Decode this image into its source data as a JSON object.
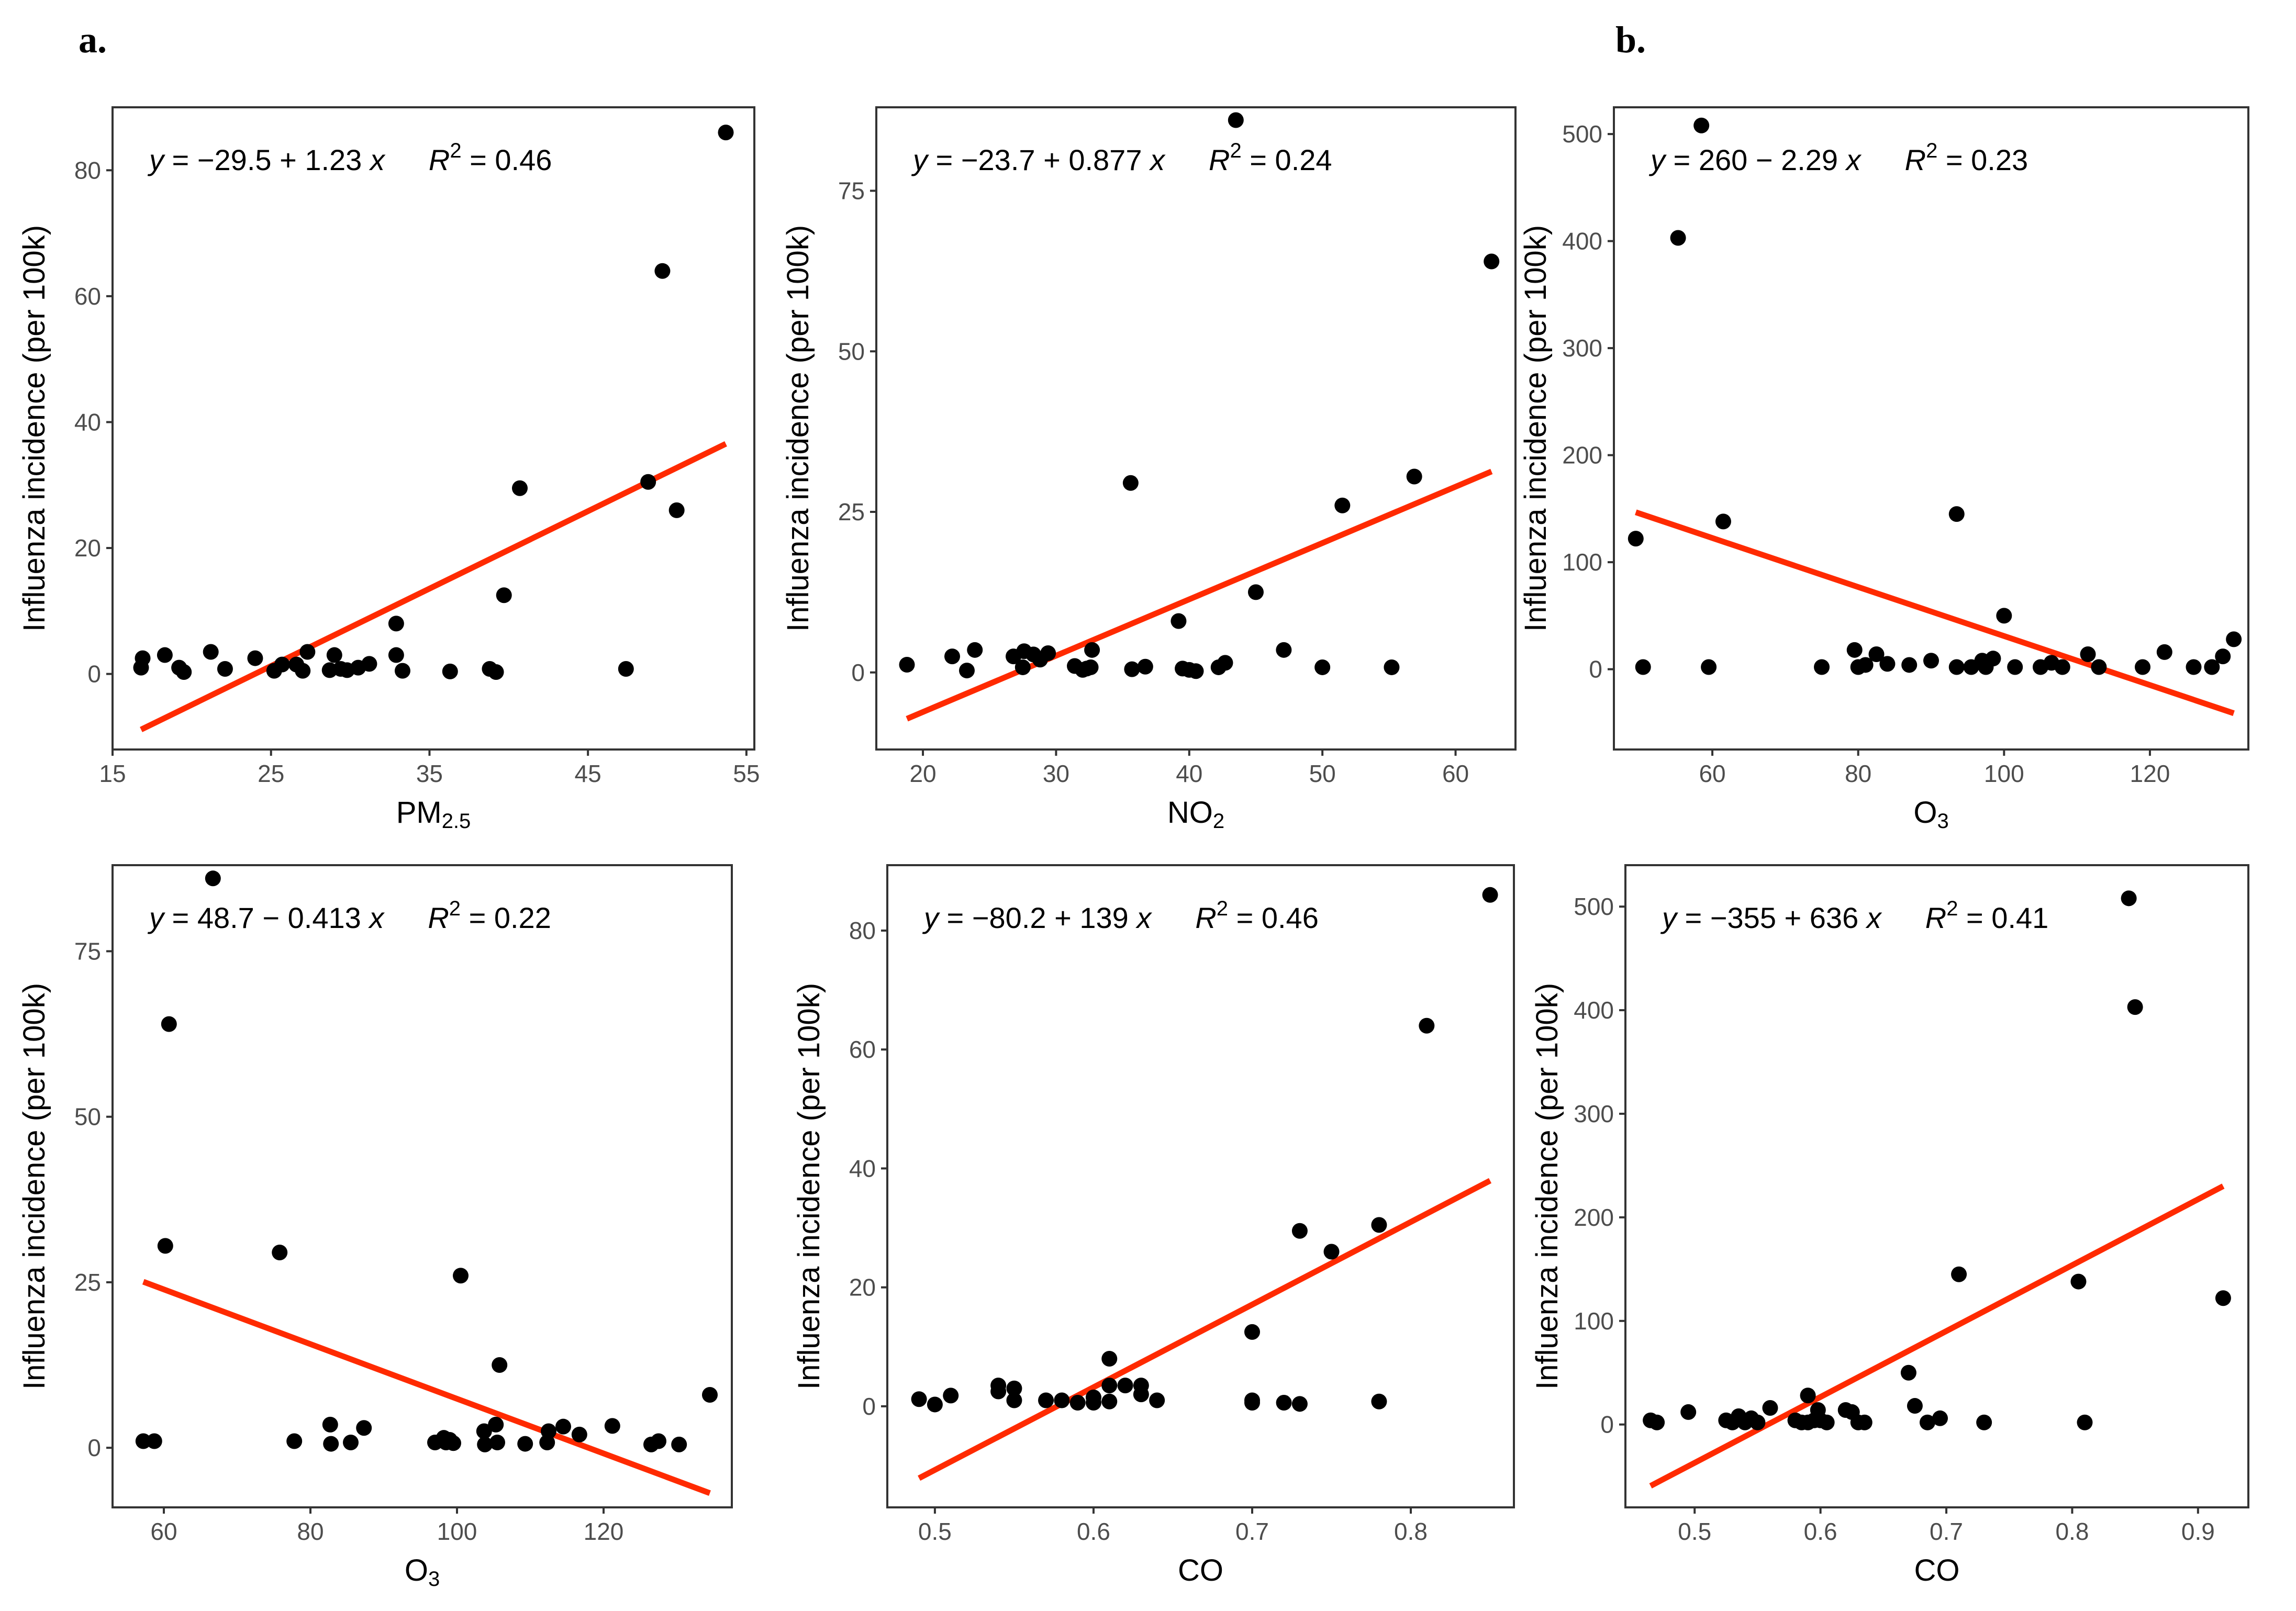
{
  "labels": {
    "a": "a.",
    "b": "b."
  },
  "colors": {
    "point": "#000000",
    "fit": "#ff2a00",
    "frame": "#333333",
    "tick": "#4d4d4d"
  },
  "y_axis_title": "Influenza incidence (per 100k)",
  "chart_data": [
    {
      "id": "pm25",
      "type": "scatter",
      "xlabel": "PM",
      "xlabel_sub": "2.5",
      "ylabel": "Influenza incidence (per 100k)",
      "equation": {
        "lhs": "y",
        "body": " = −29.5 + 1.23 ",
        "x": "x",
        "r": "R",
        "exp": "2",
        "rhs": " = 0.46"
      },
      "xlim": [
        15,
        55.5
      ],
      "ylim": [
        -12,
        90
      ],
      "xticks": [
        15,
        25,
        35,
        45,
        55
      ],
      "yticks": [
        0,
        20,
        40,
        60,
        80
      ],
      "fit": {
        "intercept": -29.5,
        "slope": 1.23,
        "x": [
          16.8,
          53.7
        ]
      },
      "points": [
        [
          16.8,
          1
        ],
        [
          16.9,
          2.5
        ],
        [
          18.3,
          3
        ],
        [
          19.2,
          1
        ],
        [
          19.5,
          0.3
        ],
        [
          21.2,
          3.5
        ],
        [
          22.1,
          0.8
        ],
        [
          24.0,
          2.5
        ],
        [
          25.2,
          0.5
        ],
        [
          25.7,
          1.5
        ],
        [
          26.6,
          1.5
        ],
        [
          27.0,
          0.5
        ],
        [
          27.3,
          3.5
        ],
        [
          28.7,
          0.6
        ],
        [
          29.0,
          3
        ],
        [
          29.4,
          0.8
        ],
        [
          29.8,
          0.6
        ],
        [
          30.5,
          1
        ],
        [
          31.2,
          1.6
        ],
        [
          32.9,
          8
        ],
        [
          32.9,
          3
        ],
        [
          33.3,
          0.5
        ],
        [
          36.3,
          0.4
        ],
        [
          38.8,
          0.8
        ],
        [
          39.2,
          0.3
        ],
        [
          39.7,
          12.5
        ],
        [
          40.7,
          29.5
        ],
        [
          47.4,
          0.8
        ],
        [
          48.8,
          30.5
        ],
        [
          49.7,
          64
        ],
        [
          50.6,
          26
        ],
        [
          53.7,
          86
        ]
      ]
    },
    {
      "id": "no2",
      "type": "scatter",
      "xlabel": "NO",
      "xlabel_sub": "2",
      "ylabel": "Influenza incidence (per 100k)",
      "equation": {
        "lhs": "y",
        "body": " = −23.7 + 0.877 ",
        "x": "x",
        "r": "R",
        "exp": "2",
        "rhs": " = 0.24"
      },
      "xlim": [
        16.5,
        64.5
      ],
      "ylim": [
        -12,
        88
      ],
      "xticks": [
        20,
        30,
        40,
        50,
        60
      ],
      "yticks": [
        0,
        25,
        50,
        75
      ],
      "fit": {
        "intercept": -23.7,
        "slope": 0.877,
        "x": [
          18.8,
          62.7
        ]
      },
      "points": [
        [
          18.8,
          1.2
        ],
        [
          22.2,
          2.5
        ],
        [
          23.3,
          0.3
        ],
        [
          23.9,
          3.5
        ],
        [
          26.8,
          2.5
        ],
        [
          27.5,
          0.8
        ],
        [
          27.6,
          3.3
        ],
        [
          28.3,
          2.8
        ],
        [
          28.8,
          2
        ],
        [
          29.4,
          3
        ],
        [
          31.4,
          1
        ],
        [
          32.0,
          0.4
        ],
        [
          32.3,
          0.6
        ],
        [
          32.6,
          0.8
        ],
        [
          32.7,
          3.5
        ],
        [
          35.6,
          29.5
        ],
        [
          35.7,
          0.5
        ],
        [
          36.7,
          0.9
        ],
        [
          39.2,
          8
        ],
        [
          39.5,
          0.6
        ],
        [
          40.0,
          0.4
        ],
        [
          40.5,
          0.2
        ],
        [
          42.2,
          0.8
        ],
        [
          42.7,
          1.5
        ],
        [
          43.5,
          86
        ],
        [
          45.0,
          12.5
        ],
        [
          47.1,
          3.5
        ],
        [
          50.0,
          0.8
        ],
        [
          51.5,
          26
        ],
        [
          55.2,
          0.8
        ],
        [
          56.9,
          30.5
        ],
        [
          62.7,
          64
        ]
      ]
    },
    {
      "id": "o3-b",
      "type": "scatter",
      "xlabel": "O",
      "xlabel_sub": "3",
      "ylabel": "Influenza incidence (per 100k)",
      "equation": {
        "lhs": "y",
        "body": " = 260 − 2.29 ",
        "x": "x",
        "r": "R",
        "exp": "2",
        "rhs": " = 0.23"
      },
      "xlim": [
        46.5,
        133.5
      ],
      "ylim": [
        -75,
        525
      ],
      "xticks": [
        60,
        80,
        100,
        120
      ],
      "yticks": [
        0,
        100,
        200,
        300,
        400,
        500
      ],
      "fit": {
        "intercept": 260,
        "slope": -2.29,
        "x": [
          49.5,
          131.5
        ]
      },
      "points": [
        [
          49.5,
          122
        ],
        [
          50.5,
          2
        ],
        [
          55.3,
          403
        ],
        [
          58.5,
          508
        ],
        [
          59.5,
          2
        ],
        [
          61.5,
          138
        ],
        [
          75.0,
          2
        ],
        [
          79.5,
          18
        ],
        [
          80.0,
          2
        ],
        [
          81.0,
          4
        ],
        [
          82.5,
          14
        ],
        [
          84.0,
          5
        ],
        [
          87.0,
          4
        ],
        [
          90.0,
          8
        ],
        [
          93.5,
          145
        ],
        [
          93.5,
          2
        ],
        [
          95.5,
          2
        ],
        [
          97.0,
          8
        ],
        [
          97.5,
          2
        ],
        [
          98.5,
          10
        ],
        [
          100.0,
          50
        ],
        [
          101.5,
          2
        ],
        [
          105.0,
          2
        ],
        [
          106.5,
          6
        ],
        [
          108.0,
          2
        ],
        [
          111.5,
          14
        ],
        [
          113.0,
          2
        ],
        [
          119.0,
          2
        ],
        [
          122.0,
          16
        ],
        [
          126.0,
          2
        ],
        [
          128.5,
          2
        ],
        [
          130.0,
          12
        ],
        [
          131.5,
          28
        ]
      ]
    },
    {
      "id": "o3-a",
      "type": "scatter",
      "xlabel": "O",
      "xlabel_sub": "3",
      "ylabel": "Influenza incidence (per 100k)",
      "equation": {
        "lhs": "y",
        "body": " = 48.7 − 0.413 ",
        "x": "x",
        "r": "R",
        "exp": "2",
        "rhs": " = 0.22"
      },
      "xlim": [
        53,
        137.5
      ],
      "ylim": [
        -9,
        88
      ],
      "xticks": [
        60,
        80,
        100,
        120
      ],
      "yticks": [
        0,
        25,
        50,
        75
      ],
      "fit": {
        "intercept": 48.7,
        "slope": -0.413,
        "x": [
          57.2,
          134.5
        ]
      },
      "points": [
        [
          57.2,
          1
        ],
        [
          58.7,
          1
        ],
        [
          60.2,
          30.5
        ],
        [
          60.7,
          64
        ],
        [
          66.7,
          86
        ],
        [
          75.8,
          29.5
        ],
        [
          77.8,
          1
        ],
        [
          82.7,
          3.5
        ],
        [
          82.8,
          0.6
        ],
        [
          85.5,
          0.8
        ],
        [
          87.3,
          3
        ],
        [
          97.0,
          0.8
        ],
        [
          98.2,
          1.5
        ],
        [
          98.5,
          0.8
        ],
        [
          99.0,
          1.2
        ],
        [
          99.5,
          0.7
        ],
        [
          100.5,
          26
        ],
        [
          103.7,
          2.5
        ],
        [
          103.8,
          0.5
        ],
        [
          105.3,
          3.5
        ],
        [
          105.5,
          0.8
        ],
        [
          105.8,
          12.5
        ],
        [
          109.3,
          0.6
        ],
        [
          112.3,
          0.8
        ],
        [
          112.5,
          2.5
        ],
        [
          114.5,
          3.2
        ],
        [
          116.7,
          2
        ],
        [
          121.2,
          3.3
        ],
        [
          126.5,
          0.5
        ],
        [
          127.5,
          1
        ],
        [
          130.3,
          0.5
        ],
        [
          134.5,
          8
        ]
      ]
    },
    {
      "id": "co-a",
      "type": "scatter",
      "xlabel": "CO",
      "xlabel_sub": "",
      "ylabel": "Influenza incidence (per 100k)",
      "equation": {
        "lhs": "y",
        "body": " = −80.2 + 139 ",
        "x": "x",
        "r": "R",
        "exp": "2",
        "rhs": " = 0.46"
      },
      "xlim": [
        0.47,
        0.865
      ],
      "ylim": [
        -17,
        91
      ],
      "xticks": [
        0.5,
        0.6,
        0.7,
        0.8
      ],
      "yticks": [
        0,
        20,
        40,
        60,
        80
      ],
      "fit": {
        "intercept": -80.2,
        "slope": 139,
        "x": [
          0.49,
          0.85
        ]
      },
      "points": [
        [
          0.49,
          1.2
        ],
        [
          0.5,
          0.3
        ],
        [
          0.51,
          1.8
        ],
        [
          0.54,
          3.5
        ],
        [
          0.54,
          2.5
        ],
        [
          0.55,
          1
        ],
        [
          0.55,
          3
        ],
        [
          0.57,
          1
        ],
        [
          0.58,
          1
        ],
        [
          0.59,
          0.6
        ],
        [
          0.6,
          1.5
        ],
        [
          0.6,
          0.6
        ],
        [
          0.61,
          8
        ],
        [
          0.61,
          3.5
        ],
        [
          0.61,
          0.8
        ],
        [
          0.62,
          3.5
        ],
        [
          0.63,
          2
        ],
        [
          0.63,
          3.5
        ],
        [
          0.64,
          1
        ],
        [
          0.7,
          12.5
        ],
        [
          0.7,
          1
        ],
        [
          0.7,
          0.6
        ],
        [
          0.72,
          0.6
        ],
        [
          0.73,
          29.5
        ],
        [
          0.73,
          0.4
        ],
        [
          0.75,
          26
        ],
        [
          0.78,
          30.5
        ],
        [
          0.78,
          0.8
        ],
        [
          0.81,
          64
        ],
        [
          0.85,
          86
        ]
      ]
    },
    {
      "id": "co-b",
      "type": "scatter",
      "xlabel": "CO",
      "xlabel_sub": "",
      "ylabel": "Influenza incidence (per 100k)",
      "equation": {
        "lhs": "y",
        "body": " = −355 + 636 ",
        "x": "x",
        "r": "R",
        "exp": "2",
        "rhs": " = 0.41"
      },
      "xlim": [
        0.445,
        0.94
      ],
      "ylim": [
        -80,
        540
      ],
      "xticks": [
        0.5,
        0.6,
        0.7,
        0.8,
        0.9
      ],
      "yticks": [
        0,
        100,
        200,
        300,
        400,
        500
      ],
      "fit": {
        "intercept": -355,
        "slope": 636,
        "x": [
          0.465,
          0.92
        ]
      },
      "points": [
        [
          0.465,
          4
        ],
        [
          0.47,
          2
        ],
        [
          0.495,
          12
        ],
        [
          0.525,
          4
        ],
        [
          0.53,
          2
        ],
        [
          0.535,
          8
        ],
        [
          0.54,
          2
        ],
        [
          0.545,
          6
        ],
        [
          0.55,
          2
        ],
        [
          0.56,
          16
        ],
        [
          0.58,
          4
        ],
        [
          0.585,
          2
        ],
        [
          0.59,
          28
        ],
        [
          0.59,
          2
        ],
        [
          0.595,
          4
        ],
        [
          0.598,
          14
        ],
        [
          0.6,
          4
        ],
        [
          0.605,
          2
        ],
        [
          0.62,
          14
        ],
        [
          0.625,
          12
        ],
        [
          0.63,
          2
        ],
        [
          0.635,
          2
        ],
        [
          0.67,
          50
        ],
        [
          0.675,
          18
        ],
        [
          0.685,
          2
        ],
        [
          0.695,
          6
        ],
        [
          0.71,
          145
        ],
        [
          0.73,
          2
        ],
        [
          0.805,
          138
        ],
        [
          0.81,
          2
        ],
        [
          0.845,
          508
        ],
        [
          0.85,
          403
        ],
        [
          0.92,
          122
        ]
      ]
    }
  ]
}
